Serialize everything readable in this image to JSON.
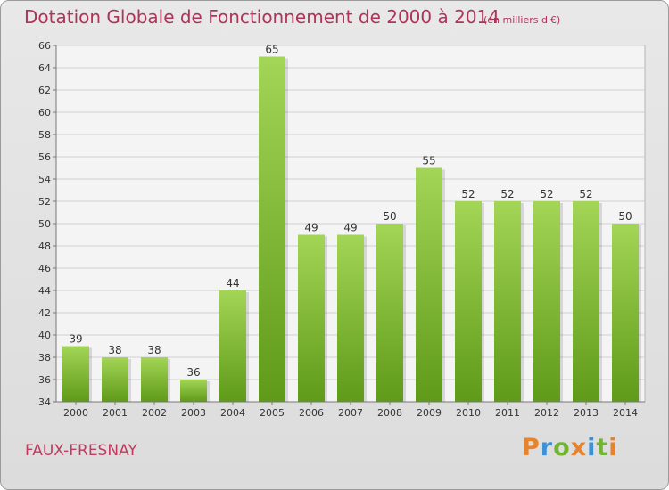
{
  "header": {
    "title": "Dotation Globale de Fonctionnement de 2000 à 2014",
    "subtitle": "(en milliers d'€)"
  },
  "footer": {
    "commune": "FAUX-FRESNAY",
    "logo_text": "Proxiti",
    "logo_colors": [
      "#e7832b",
      "#3d8fd6",
      "#73b532",
      "#e7832b",
      "#3d8fd6",
      "#73b532",
      "#e7832b"
    ]
  },
  "colors": {
    "bar_top": "#a3d556",
    "bar_bottom": "#5f9a19",
    "title": "#b0345a",
    "grid": "#cfcfcf"
  },
  "chart_data": {
    "type": "bar",
    "categories": [
      "2000",
      "2001",
      "2002",
      "2003",
      "2004",
      "2005",
      "2006",
      "2007",
      "2008",
      "2009",
      "2010",
      "2011",
      "2012",
      "2013",
      "2014"
    ],
    "values": [
      39,
      38,
      38,
      36,
      44,
      65,
      49,
      49,
      50,
      55,
      52,
      52,
      52,
      52,
      50
    ],
    "ylim": [
      34,
      66
    ],
    "yticks": [
      34,
      36,
      38,
      40,
      42,
      44,
      46,
      48,
      50,
      52,
      54,
      56,
      58,
      60,
      62,
      64,
      66
    ],
    "grid": true,
    "data_labels": true
  }
}
